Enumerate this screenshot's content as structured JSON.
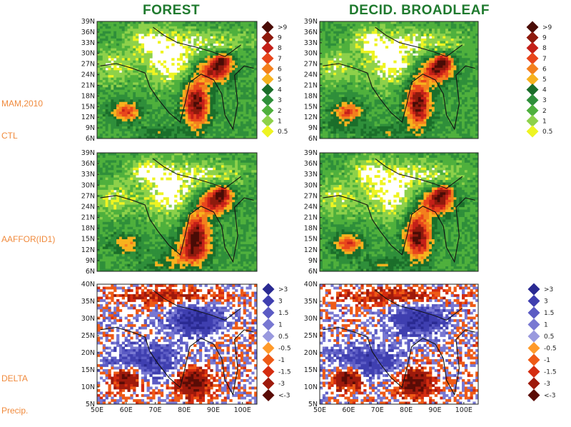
{
  "titles": {
    "left": "FOREST",
    "right": "DECID. BROADLEAF"
  },
  "rows": [
    {
      "label_lines": [
        "MAM,2010",
        "CTL"
      ]
    },
    {
      "label_lines": [
        "AAFFOR(ID1)"
      ]
    },
    {
      "label_lines": [
        "DELTA",
        "Precip."
      ]
    }
  ],
  "chart_data": {
    "type": "heatmap",
    "axes_rows_1_2": {
      "y_ticks": [
        "39N",
        "36N",
        "33N",
        "30N",
        "27N",
        "24N",
        "21N",
        "18N",
        "15N",
        "12N",
        "9N",
        "6N"
      ]
    },
    "axes_row_3": {
      "y_ticks": [
        "40N",
        "35N",
        "30N",
        "25N",
        "20N",
        "15N",
        "10N",
        "5N"
      ],
      "x_ticks": [
        "50E",
        "60E",
        "70E",
        "80E",
        "90E",
        "100E"
      ]
    },
    "legend_precip": {
      "labels": [
        ">9",
        "9",
        "8",
        "7",
        "6",
        "5",
        "4",
        "3",
        "2",
        "1",
        "0.5"
      ],
      "colors": [
        "#4a0c06",
        "#8e1a0d",
        "#c42018",
        "#e8461c",
        "#f3801d",
        "#f7b21e",
        "#1b6e2a",
        "#2f8f3a",
        "#4fb03d",
        "#8dd14a",
        "#eef422"
      ]
    },
    "legend_delta": {
      "labels": [
        ">3",
        "3",
        "1.5",
        "1",
        "0.5",
        "-0.5",
        "-1",
        "-1.5",
        "-3",
        "<-3"
      ],
      "colors": [
        "#2a2a92",
        "#3f3fb0",
        "#5b5bc4",
        "#7878d2",
        "#9999de",
        "#ff9a2a",
        "#ee5a16",
        "#d42c10",
        "#9e1a0c",
        "#5a0c06"
      ]
    }
  }
}
